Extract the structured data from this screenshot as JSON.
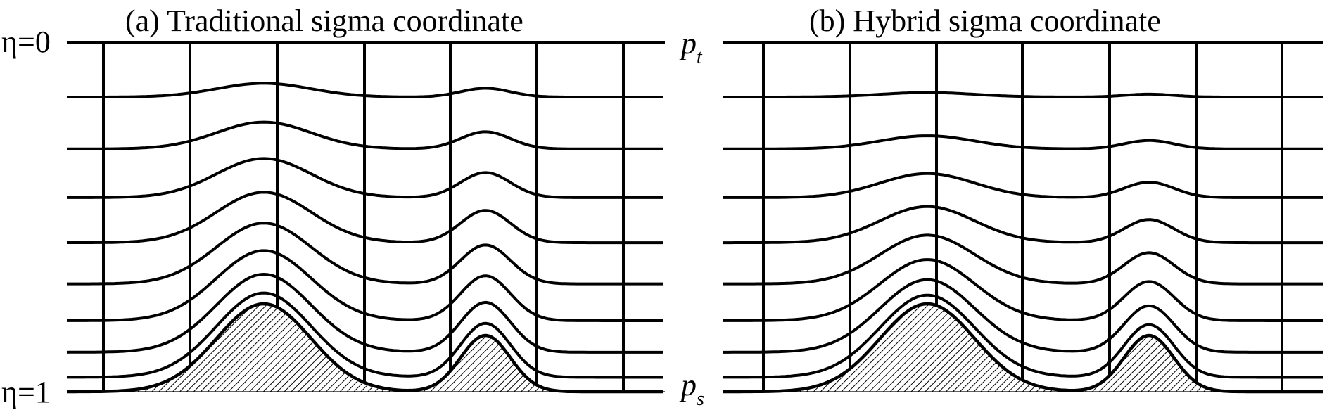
{
  "panel_a": {
    "title": "(a)  Traditional sigma coordinate"
  },
  "panel_b": {
    "title": "(b)  Hybrid sigma coordinate"
  },
  "labels": {
    "eta_top": "η=0",
    "eta_bottom": "η=1",
    "p_top_base": "p",
    "p_top_sub": "t",
    "p_bottom_base": "p",
    "p_bottom_sub": "s"
  },
  "colors": {
    "line": "#000000",
    "background": "#ffffff"
  }
}
